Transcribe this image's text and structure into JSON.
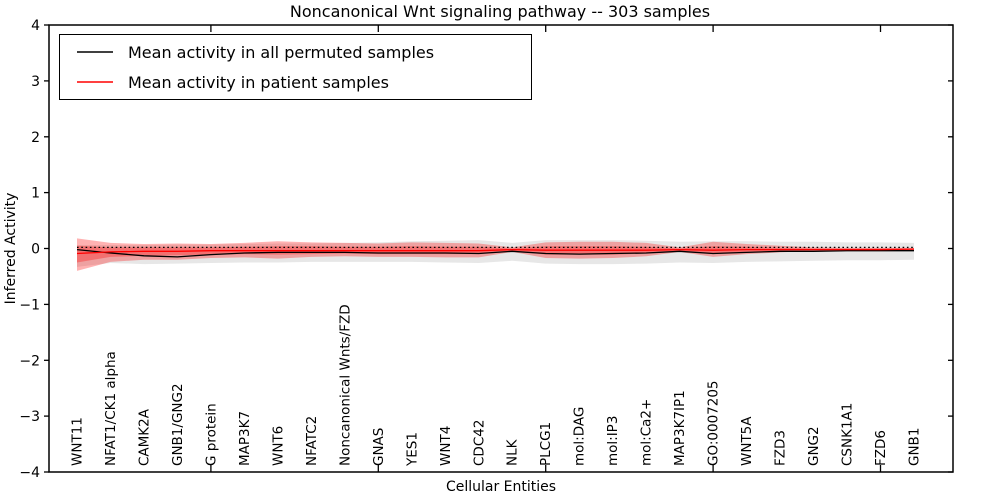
{
  "chart_data": {
    "type": "line",
    "title": "Noncanonical Wnt signaling pathway -- 303 samples",
    "xlabel": "Cellular Entities",
    "ylabel": "Inferred Activity",
    "ylim": [
      -4,
      4
    ],
    "yticks": [
      -4,
      -3,
      -2,
      -1,
      0,
      1,
      2,
      3,
      4
    ],
    "ytick_labels": [
      "−4",
      "−3",
      "−2",
      "−1",
      "0",
      "1",
      "2",
      "3",
      "4"
    ],
    "xtick_mark_indices": [
      4,
      9,
      14,
      19,
      24
    ],
    "grid": false,
    "legend_position": "upper left",
    "categories": [
      "WNT11",
      "NFAT1/CK1 alpha",
      "CAMK2A",
      "GNB1/GNG2",
      "G protein",
      "MAP3K7",
      "WNT6",
      "NFATC2",
      "Noncanonical Wnts/FZD",
      "GNAS",
      "YES1",
      "WNT4",
      "CDC42",
      "NLK",
      "PLCG1",
      "mol:DAG",
      "mol:IP3",
      "mol:Ca2+",
      "MAP3K7IP1",
      "GO:0007205",
      "WNT5A",
      "FZD3",
      "GNG2",
      "CSNK1A1",
      "FZD6",
      "GNB1"
    ],
    "series": [
      {
        "name": "Mean activity in all permuted samples",
        "color": "#000000",
        "style": "solid",
        "values": [
          -0.02,
          -0.08,
          -0.13,
          -0.15,
          -0.11,
          -0.08,
          -0.07,
          -0.07,
          -0.07,
          -0.08,
          -0.08,
          -0.08,
          -0.09,
          -0.05,
          -0.09,
          -0.1,
          -0.09,
          -0.08,
          -0.05,
          -0.09,
          -0.07,
          -0.05,
          -0.05,
          -0.04,
          -0.04,
          -0.04
        ]
      },
      {
        "name": "Mean activity in patient samples",
        "color": "#ff0000",
        "style": "solid",
        "values": [
          -0.09,
          -0.06,
          -0.05,
          -0.05,
          -0.04,
          -0.04,
          -0.04,
          -0.04,
          -0.04,
          -0.04,
          -0.04,
          -0.04,
          -0.04,
          -0.02,
          -0.03,
          -0.03,
          -0.03,
          -0.03,
          -0.02,
          -0.03,
          -0.02,
          -0.02,
          -0.02,
          -0.02,
          -0.02,
          -0.01
        ]
      },
      {
        "name": "dotted baseline (unlabeled)",
        "color": "#000000",
        "style": "dotted",
        "values": [
          0.02,
          0.02,
          0.02,
          0.02,
          0.02,
          0.02,
          0.02,
          0.02,
          0.02,
          0.02,
          0.02,
          0.02,
          0.02,
          0.02,
          0.02,
          0.02,
          0.02,
          0.02,
          0.02,
          0.02,
          0.02,
          0.02,
          0.02,
          0.02,
          0.02,
          0.02
        ]
      }
    ],
    "bands": [
      {
        "name": "permuted-samples-range",
        "color": "#e7e7e7",
        "opacity": 1,
        "upper": [
          0.06,
          0.06,
          0.06,
          0.07,
          0.07,
          0.08,
          0.09,
          0.09,
          0.1,
          0.11,
          0.13,
          0.14,
          0.15,
          0.1,
          0.15,
          0.15,
          0.15,
          0.14,
          0.12,
          0.13,
          0.13,
          0.12,
          0.12,
          0.11,
          0.11,
          0.1
        ],
        "lower": [
          -0.33,
          -0.26,
          -0.28,
          -0.27,
          -0.26,
          -0.25,
          -0.25,
          -0.24,
          -0.24,
          -0.24,
          -0.24,
          -0.25,
          -0.26,
          -0.22,
          -0.27,
          -0.28,
          -0.28,
          -0.27,
          -0.25,
          -0.26,
          -0.24,
          -0.23,
          -0.22,
          -0.21,
          -0.21,
          -0.2
        ]
      },
      {
        "name": "patient-samples-range-outer",
        "color": "#ff0000",
        "opacity": 0.3,
        "upper": [
          0.18,
          0.1,
          0.08,
          0.09,
          0.08,
          0.1,
          0.13,
          0.11,
          0.1,
          0.09,
          0.11,
          0.1,
          0.09,
          0.02,
          0.11,
          0.12,
          0.12,
          0.1,
          0.02,
          0.12,
          0.08,
          0.05,
          0.02,
          0.01,
          0.01,
          0.01
        ],
        "lower": [
          -0.4,
          -0.24,
          -0.2,
          -0.2,
          -0.17,
          -0.16,
          -0.18,
          -0.15,
          -0.14,
          -0.15,
          -0.15,
          -0.16,
          -0.16,
          -0.06,
          -0.17,
          -0.18,
          -0.17,
          -0.14,
          -0.06,
          -0.15,
          -0.1,
          -0.07,
          -0.04,
          -0.03,
          -0.03,
          -0.03
        ],
        "legend": "Mean activity in patient samples"
      },
      {
        "name": "patient-samples-range-inner",
        "color": "#ff0000",
        "opacity": 0.3,
        "upper": [
          0.05,
          0.02,
          0.02,
          0.02,
          0.02,
          0.03,
          0.04,
          0.04,
          0.03,
          0.03,
          0.04,
          0.03,
          0.03,
          0.0,
          0.04,
          0.04,
          0.04,
          0.03,
          0.0,
          0.04,
          0.03,
          0.01,
          0.0,
          0.0,
          0.0,
          0.0
        ],
        "lower": [
          -0.25,
          -0.15,
          -0.13,
          -0.12,
          -0.11,
          -0.1,
          -0.11,
          -0.1,
          -0.09,
          -0.1,
          -0.1,
          -0.1,
          -0.1,
          -0.04,
          -0.11,
          -0.11,
          -0.11,
          -0.09,
          -0.04,
          -0.1,
          -0.06,
          -0.04,
          -0.03,
          -0.02,
          -0.02,
          -0.02
        ]
      }
    ]
  }
}
